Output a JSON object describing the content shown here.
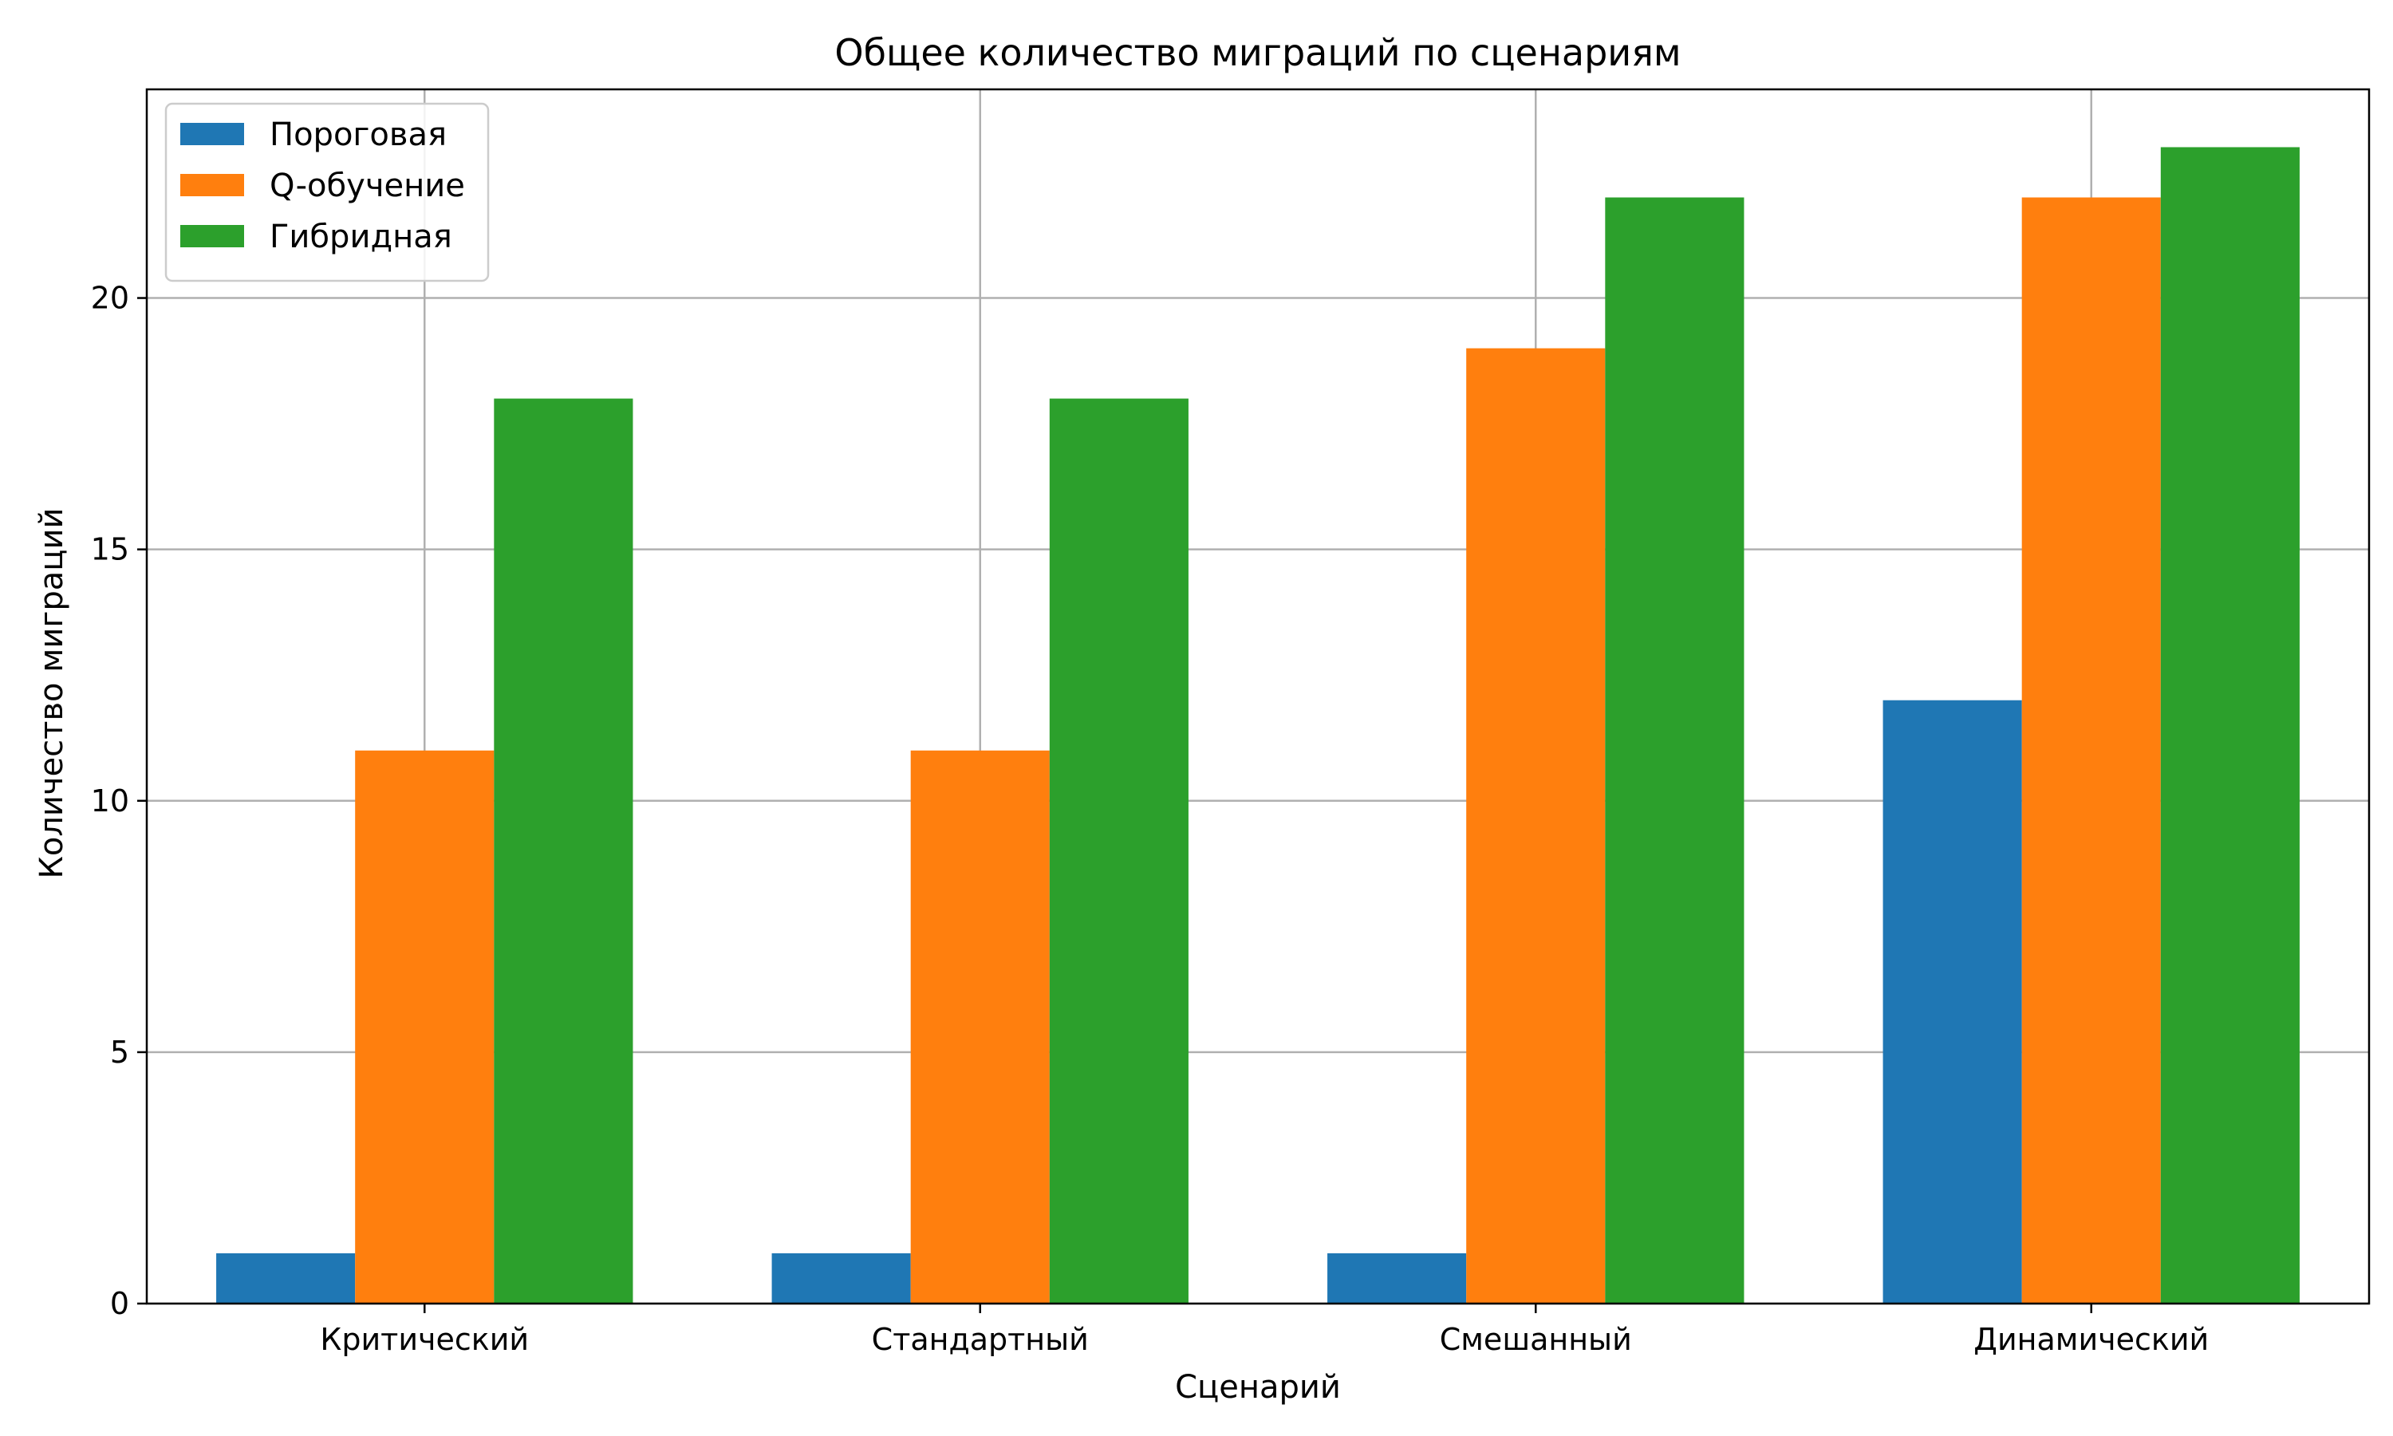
{
  "chart_data": {
    "type": "bar",
    "title": "Общее количество миграций по сценариям",
    "xlabel": "Сценарий",
    "ylabel": "Количество миграций",
    "categories": [
      "Критический",
      "Стандартный",
      "Смешанный",
      "Динамический"
    ],
    "series": [
      {
        "name": "Пороговая",
        "color": "#1f77b4",
        "values": [
          1,
          1,
          1,
          12
        ]
      },
      {
        "name": "Q-обучение",
        "color": "#ff7f0e",
        "values": [
          11,
          11,
          19,
          22
        ]
      },
      {
        "name": "Гибридная",
        "color": "#2ca02c",
        "values": [
          18,
          18,
          22,
          23
        ]
      }
    ],
    "ylim": [
      0,
      24.15
    ],
    "yticks": [
      0,
      5,
      10,
      15,
      20
    ],
    "ytick_labels": [
      "0",
      "5",
      "10",
      "15",
      "20"
    ],
    "grid": true,
    "legend_position": "top-left"
  }
}
